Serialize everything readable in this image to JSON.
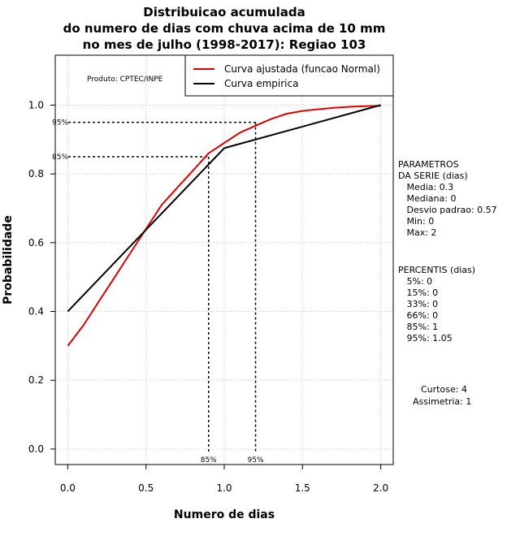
{
  "chart_data": {
    "type": "line",
    "title_lines": [
      "Distribuicao acumulada",
      "do numero de dias com chuva acima de 10 mm",
      "no mes de julho (1998-2017): Regiao 103"
    ],
    "xlabel": "Numero de dias",
    "ylabel": "Probabilidade",
    "xlim": [
      -0.08,
      2.08
    ],
    "ylim": [
      -0.045,
      1.145
    ],
    "x_ticks": [
      "0.0",
      "0.5",
      "1.0",
      "1.5",
      "2.0"
    ],
    "y_ticks": [
      "0.0",
      "0.2",
      "0.4",
      "0.6",
      "0.8",
      "1.0"
    ],
    "grid": true,
    "legend": {
      "placement": "top-right",
      "entries": [
        {
          "label": "Curva ajustada (funcao Normal)",
          "color": "#e00000"
        },
        {
          "label": "Curva empirica",
          "color": "#000000"
        }
      ]
    },
    "series": [
      {
        "name": "Curva ajustada (funcao Normal)",
        "color": "#e00000",
        "x": [
          0,
          0.1,
          0.2,
          0.3,
          0.4,
          0.5,
          0.6,
          0.7,
          0.8,
          0.9,
          1.0,
          1.1,
          1.2,
          1.3,
          1.4,
          1.5,
          1.6,
          1.7,
          1.8,
          1.9,
          2.0
        ],
        "y": [
          0.3,
          0.36,
          0.43,
          0.5,
          0.57,
          0.64,
          0.71,
          0.76,
          0.81,
          0.86,
          0.89,
          0.92,
          0.94,
          0.96,
          0.975,
          0.983,
          0.988,
          0.992,
          0.995,
          0.997,
          0.998
        ]
      },
      {
        "name": "Curva empirica",
        "color": "#000000",
        "x": [
          0,
          1,
          2
        ],
        "y": [
          0.4,
          0.875,
          1.0
        ]
      }
    ],
    "percentile_markers": [
      {
        "label": "85%",
        "x": 0.9,
        "y": 0.85
      },
      {
        "label": "95%",
        "x": 1.2,
        "y": 0.95
      }
    ],
    "annotation": "Produto: CPTEC/INPE"
  },
  "sidebar": {
    "parametros": [
      "PARAMETROS",
      "DA SERIE (dias)",
      "   Media: 0.3",
      "   Mediana: 0",
      "   Desvio padrao: 0.57",
      "   Min: 0",
      "   Max: 2"
    ],
    "percentis": [
      "PERCENTIS (dias)",
      "   5%: 0",
      "   15%: 0",
      "   33%: 0",
      "   66%: 0",
      "   85%: 1",
      "   95%: 1.05"
    ],
    "curtose": "Curtose: 4",
    "assimetria": "Assimetria: 1"
  }
}
